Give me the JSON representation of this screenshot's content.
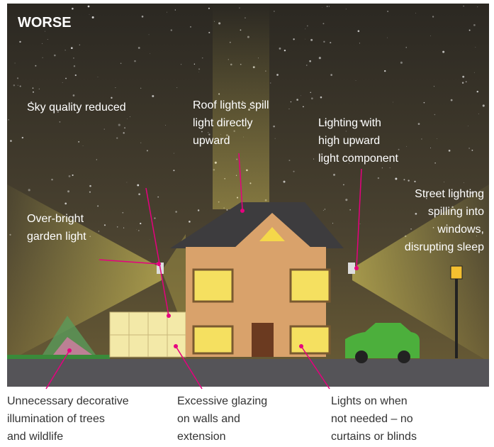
{
  "title": "WORSE",
  "labels": [
    {
      "lines": [
        "Sky quality reduced"
      ]
    },
    {
      "lines": [
        "Roof lights spill",
        "light directly",
        "upward"
      ]
    },
    {
      "lines": [
        "Lighting with",
        "high upward",
        "light component"
      ]
    },
    {
      "lines": [
        "Street lighting",
        "spilling into",
        "windows,",
        "disrupting sleep"
      ]
    },
    {
      "lines": [
        "Over-bright",
        "garden light"
      ]
    },
    {
      "lines": [
        "Unnecessary decorative",
        "illumination of trees",
        "and wildlife"
      ]
    },
    {
      "lines": [
        "Excessive glazing",
        "on walls and",
        "extension"
      ]
    },
    {
      "lines": [
        "Lights on when",
        "not needed – no",
        "curtains or blinds"
      ]
    }
  ]
}
